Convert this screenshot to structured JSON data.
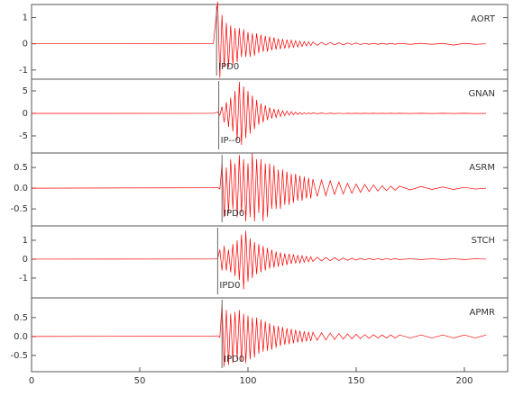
{
  "chart_data": [
    {
      "type": "line",
      "label": "AORT",
      "color": "#ff0000",
      "pick": {
        "x": 85.5,
        "label": "IPD0"
      },
      "xlim": [
        0,
        220
      ],
      "ylim": [
        -1.35,
        1.5
      ],
      "yticks": [
        -1,
        0,
        1
      ],
      "x": [
        0,
        84,
        86,
        87,
        88,
        89,
        90,
        91,
        92,
        93,
        94,
        95,
        96,
        97,
        98,
        99,
        100,
        101,
        102,
        103,
        104,
        105,
        106,
        107,
        108,
        109,
        110,
        111,
        112,
        113,
        114,
        115,
        116,
        117,
        118,
        119,
        120,
        121,
        122,
        123,
        124,
        125,
        126,
        127,
        128,
        129,
        130,
        132,
        134,
        136,
        138,
        140,
        142,
        144,
        146,
        148,
        150,
        152,
        154,
        156,
        158,
        160,
        162,
        164,
        166,
        168,
        170,
        175,
        180,
        185,
        190,
        195,
        200,
        205,
        210
      ],
      "values": [
        0,
        0.01,
        1.6,
        -1.3,
        1.1,
        -0.9,
        0.8,
        -0.9,
        0.7,
        -0.8,
        0.6,
        -0.7,
        0.6,
        -0.5,
        0.55,
        -0.5,
        0.45,
        -0.5,
        0.4,
        -0.45,
        0.4,
        -0.35,
        0.35,
        -0.3,
        0.3,
        -0.3,
        0.28,
        -0.25,
        0.25,
        -0.22,
        0.2,
        -0.2,
        0.18,
        -0.18,
        0.16,
        -0.15,
        0.14,
        -0.13,
        0.12,
        -0.12,
        0.1,
        -0.1,
        0.09,
        -0.08,
        0.08,
        -0.07,
        0.07,
        -0.06,
        0.06,
        -0.05,
        0.05,
        -0.04,
        0.04,
        -0.04,
        0.03,
        -0.03,
        0.03,
        -0.03,
        0.02,
        -0.02,
        0.02,
        -0.02,
        0.02,
        -0.02,
        0.02,
        -0.02,
        0.02,
        -0.02,
        0.02,
        -0.02,
        0.02,
        -0.05,
        0.02,
        -0.02,
        0
      ]
    },
    {
      "type": "line",
      "label": "GNAN",
      "color": "#ff0000",
      "pick": {
        "x": 86.5,
        "label": "IP--0"
      },
      "xlim": [
        0,
        220
      ],
      "ylim": [
        -8.8,
        7.6
      ],
      "yticks": [
        -5,
        0,
        5
      ],
      "x": [
        0,
        84,
        86,
        87,
        88,
        89,
        90,
        91,
        92,
        93,
        94,
        95,
        96,
        97,
        98,
        99,
        100,
        101,
        102,
        103,
        104,
        105,
        106,
        107,
        108,
        109,
        110,
        111,
        112,
        113,
        114,
        115,
        116,
        117,
        118,
        119,
        120,
        121,
        122,
        123,
        124,
        125,
        126,
        127,
        128,
        129,
        130,
        132,
        134,
        136,
        138,
        140,
        142,
        144,
        146,
        148,
        150,
        152,
        154,
        156,
        158,
        160,
        162,
        164,
        166,
        168,
        170,
        175,
        180,
        185,
        190,
        195,
        200,
        205,
        210
      ],
      "values": [
        0,
        0.01,
        0.3,
        -0.4,
        1.5,
        -2,
        2.5,
        -3,
        3.5,
        -4,
        5,
        -6,
        7,
        -7,
        6,
        -5.5,
        5,
        -4.5,
        4,
        -3.5,
        3,
        -2.5,
        2.2,
        -2,
        1.8,
        -1.5,
        1.3,
        -1.1,
        1,
        -0.9,
        0.8,
        -0.7,
        0.6,
        -0.5,
        0.5,
        -0.4,
        0.4,
        -0.3,
        0.3,
        -0.25,
        0.2,
        -0.2,
        0.15,
        -0.15,
        0.12,
        -0.1,
        0.1,
        -0.08,
        0.07,
        -0.06,
        0.05,
        -0.05,
        0.04,
        -0.04,
        0.03,
        -0.03,
        0.03,
        -0.02,
        0.02,
        -0.02,
        0.02,
        -0.02,
        0.02,
        -0.02,
        0.02,
        -0.02,
        0.02,
        -0.02,
        0.02,
        -0.02,
        0.02,
        -0.02,
        0.02,
        -0.02,
        0
      ]
    },
    {
      "type": "line",
      "label": "ASRM",
      "color": "#ff0000",
      "pick": {
        "x": 88,
        "label": "IPD0"
      },
      "xlim": [
        0,
        220
      ],
      "ylim": [
        -0.91,
        0.85
      ],
      "yticks": [
        -0.5,
        {
          "value": 0,
          "label": "0.0"
        },
        0.5
      ],
      "x": [
        0,
        84,
        86,
        87,
        88,
        89,
        90,
        91,
        92,
        93,
        94,
        95,
        96,
        97,
        98,
        99,
        100,
        101,
        102,
        103,
        104,
        105,
        106,
        107,
        108,
        109,
        110,
        111,
        112,
        113,
        114,
        115,
        116,
        117,
        118,
        119,
        120,
        121,
        122,
        123,
        124,
        125,
        126,
        127,
        128,
        129,
        130,
        132,
        134,
        136,
        138,
        140,
        142,
        144,
        146,
        148,
        150,
        152,
        154,
        156,
        158,
        160,
        162,
        164,
        166,
        168,
        170,
        175,
        180,
        185,
        190,
        195,
        200,
        205,
        210
      ],
      "values": [
        0,
        0.01,
        0.02,
        -0.02,
        0.6,
        -0.7,
        0.5,
        -0.6,
        0.7,
        -0.5,
        0.6,
        -0.7,
        0.8,
        -0.6,
        0.7,
        -0.8,
        0.6,
        -0.7,
        0.84,
        -0.8,
        0.7,
        -0.6,
        0.7,
        -0.8,
        0.6,
        -0.7,
        0.6,
        -0.5,
        0.55,
        -0.5,
        0.45,
        -0.5,
        0.45,
        -0.4,
        0.4,
        -0.4,
        0.35,
        -0.35,
        0.35,
        -0.3,
        0.3,
        -0.3,
        0.28,
        -0.25,
        0.25,
        -0.25,
        0.22,
        -0.2,
        0.2,
        -0.18,
        0.18,
        -0.15,
        0.15,
        -0.14,
        0.12,
        -0.12,
        0.1,
        -0.1,
        0.09,
        -0.08,
        0.08,
        -0.07,
        0.06,
        -0.06,
        0.05,
        -0.05,
        0.05,
        -0.04,
        0.04,
        -0.03,
        0.03,
        -0.03,
        0.02,
        -0.02,
        0
      ]
    },
    {
      "type": "line",
      "label": "STCH",
      "color": "#ff0000",
      "pick": {
        "x": 86,
        "label": "IPD0"
      },
      "xlim": [
        0,
        220
      ],
      "ylim": [
        -2.05,
        1.76
      ],
      "yticks": [
        -1,
        0,
        1
      ],
      "x": [
        0,
        84,
        86,
        87,
        88,
        89,
        90,
        91,
        92,
        93,
        94,
        95,
        96,
        97,
        98,
        99,
        100,
        101,
        102,
        103,
        104,
        105,
        106,
        107,
        108,
        109,
        110,
        111,
        112,
        113,
        114,
        115,
        116,
        117,
        118,
        119,
        120,
        121,
        122,
        123,
        124,
        125,
        126,
        127,
        128,
        129,
        130,
        132,
        134,
        136,
        138,
        140,
        142,
        144,
        146,
        148,
        150,
        152,
        154,
        156,
        158,
        160,
        162,
        164,
        166,
        168,
        170,
        175,
        180,
        185,
        190,
        195,
        200,
        205,
        210
      ],
      "values": [
        0,
        0.01,
        0.02,
        0.5,
        -0.6,
        0.7,
        -0.6,
        0.5,
        -0.7,
        0.8,
        -0.9,
        1,
        -1.1,
        1.3,
        -1.6,
        1.5,
        -1.2,
        1.1,
        -1,
        0.9,
        -0.8,
        0.8,
        -0.7,
        0.7,
        -0.6,
        0.6,
        -0.5,
        0.5,
        -0.45,
        0.4,
        -0.4,
        0.35,
        -0.35,
        0.3,
        -0.3,
        0.28,
        -0.25,
        0.25,
        -0.22,
        0.2,
        -0.2,
        0.18,
        -0.16,
        0.15,
        -0.14,
        0.13,
        -0.12,
        0.1,
        -0.1,
        0.09,
        -0.08,
        0.08,
        -0.07,
        0.06,
        -0.06,
        0.05,
        -0.05,
        0.04,
        -0.04,
        0.04,
        -0.03,
        0.03,
        -0.03,
        0.03,
        -0.02,
        0.02,
        -0.02,
        0.02,
        -0.02,
        0.02,
        -0.02,
        0.02,
        -0.02,
        0.02,
        0
      ]
    },
    {
      "type": "line",
      "label": "APMR",
      "color": "#ff0000",
      "pick": {
        "x": 88,
        "label": "IPD0"
      },
      "xlim": [
        0,
        220
      ],
      "ylim": [
        -0.93,
        1.02
      ],
      "yticks": [
        -0.5,
        {
          "value": 0,
          "label": "0.0"
        },
        0.5
      ],
      "xticks": [
        0,
        50,
        100,
        150,
        200
      ],
      "x": [
        0,
        84,
        86,
        87,
        88,
        89,
        90,
        91,
        92,
        93,
        94,
        95,
        96,
        97,
        98,
        99,
        100,
        101,
        102,
        103,
        104,
        105,
        106,
        107,
        108,
        109,
        110,
        111,
        112,
        113,
        114,
        115,
        116,
        117,
        118,
        119,
        120,
        121,
        122,
        123,
        124,
        125,
        126,
        127,
        128,
        129,
        130,
        132,
        134,
        136,
        138,
        140,
        142,
        144,
        146,
        148,
        150,
        152,
        154,
        156,
        158,
        160,
        162,
        164,
        166,
        168,
        170,
        175,
        180,
        185,
        190,
        195,
        200,
        205,
        210
      ],
      "values": [
        0,
        0.01,
        0.02,
        -0.02,
        0.85,
        -0.8,
        0.7,
        -0.75,
        0.6,
        -0.7,
        0.65,
        -0.6,
        0.7,
        -0.65,
        0.6,
        -0.7,
        0.55,
        -0.6,
        0.5,
        -0.55,
        0.5,
        -0.45,
        0.45,
        -0.4,
        0.4,
        -0.38,
        0.35,
        -0.35,
        0.3,
        -0.3,
        0.28,
        -0.25,
        0.25,
        -0.22,
        0.22,
        -0.2,
        0.2,
        -0.18,
        0.18,
        -0.16,
        0.15,
        -0.15,
        0.14,
        -0.13,
        0.12,
        -0.12,
        0.11,
        -0.1,
        0.1,
        -0.09,
        0.09,
        -0.08,
        0.08,
        -0.07,
        0.07,
        -0.06,
        0.06,
        -0.06,
        0.05,
        -0.05,
        0.05,
        -0.04,
        0.04,
        -0.04,
        0.04,
        -0.04,
        0.04,
        -0.04,
        0.04,
        -0.04,
        0.04,
        -0.04,
        0.04,
        -0.04,
        0.04
      ]
    }
  ]
}
